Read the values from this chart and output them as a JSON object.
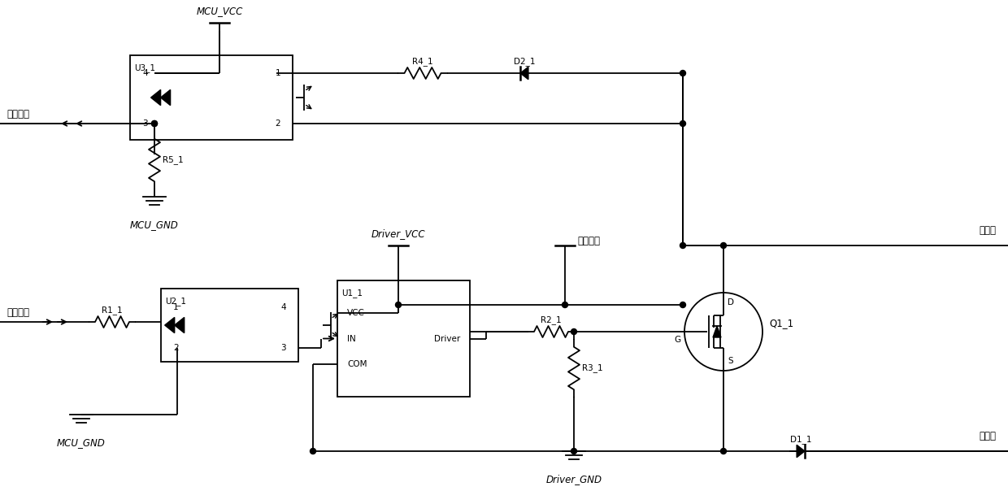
{
  "bg_color": "#ffffff",
  "lc": "#000000",
  "lw": 1.3,
  "fs": 8.5,
  "labels": {
    "mcu_vcc": "MCU_VCC",
    "mcu_gnd_top": "MCU_GND",
    "mcu_gnd_bot": "MCU_GND",
    "driver_vcc": "Driver_VCC",
    "driver_gnd": "Driver_GND",
    "feedback": "反馈信号",
    "drive_signal": "驱动信号",
    "u3_1": "U3_1",
    "u2_1": "U2_1",
    "u1_1": "U1_1",
    "r1_1": "R1_1",
    "r2_1": "R2_1",
    "r3_1": "R3_1",
    "r4_1": "R4_1",
    "r5_1": "R5_1",
    "d1_1": "D1_1",
    "d2_1": "D2_1",
    "q1_1": "Q1_1",
    "vcc_pin": "VCC",
    "in_pin": "IN",
    "driver_pin": "Driver",
    "com_pin": "COM",
    "d_label": "D",
    "g_label": "G",
    "s_label": "S",
    "input_terminal": "输入端",
    "output_terminal": "输出端",
    "drive_power": "驱动电源"
  }
}
